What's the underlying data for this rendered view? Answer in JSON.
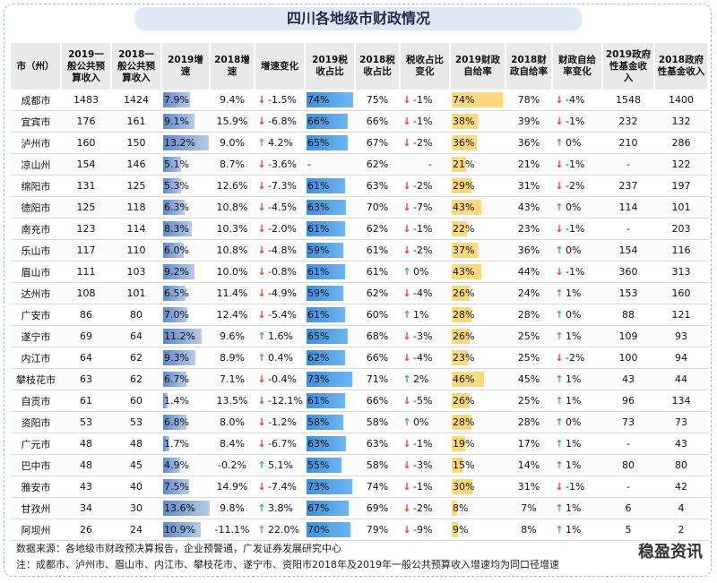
{
  "title": "四川各地级市财政情况",
  "headers": [
    "市（州）",
    "2019一般公共预算收入",
    "2018一般公共预算收入",
    "2019增速",
    "2018增速",
    "增速变化",
    "2019税收占比",
    "2018税收占比",
    "税收占比变化",
    "2019财政自给率",
    "2018财政自给率",
    "财政自给率变化",
    "2019政府性基金收入",
    "2018政府性基金收入"
  ],
  "rows": [
    {
      "city": "成都市",
      "b19": "1483",
      "b18": "1424",
      "g19": "7.9%",
      "g19v": 7.9,
      "g18": "9.4%",
      "gd": "-1.5%",
      "gdd": "down",
      "t19": "74%",
      "t19v": 74,
      "t18": "75%",
      "td": "-1%",
      "tdd": "down",
      "s19": "74%",
      "s19v": 74,
      "s18": "78%",
      "sd": "-4%",
      "sdd": "down",
      "f19": "1548",
      "f18": "1400"
    },
    {
      "city": "宜宾市",
      "b19": "176",
      "b18": "161",
      "g19": "9.1%",
      "g19v": 9.1,
      "g18": "15.9%",
      "gd": "-6.8%",
      "gdd": "down",
      "t19": "66%",
      "t19v": 66,
      "t18": "66%",
      "td": "-1%",
      "tdd": "down",
      "s19": "38%",
      "s19v": 38,
      "s18": "39%",
      "sd": "-1%",
      "sdd": "down",
      "f19": "232",
      "f18": "132"
    },
    {
      "city": "泸州市",
      "b19": "160",
      "b18": "150",
      "g19": "13.2%",
      "g19v": 13.2,
      "g18": "9.0%",
      "gd": "4.2%",
      "gdd": "up",
      "t19": "65%",
      "t19v": 65,
      "t18": "67%",
      "td": "-2%",
      "tdd": "down",
      "s19": "36%",
      "s19v": 36,
      "s18": "36%",
      "sd": "0%",
      "sdd": "up",
      "f19": "210",
      "f18": "286"
    },
    {
      "city": "凉山州",
      "b19": "154",
      "b18": "146",
      "g19": "5.1%",
      "g19v": 5.1,
      "g18": "8.7%",
      "gd": "-3.6%",
      "gdd": "down",
      "t19": "-",
      "t19v": 0,
      "t18": "62%",
      "td": "-",
      "tdd": "",
      "s19": "21%",
      "s19v": 21,
      "s18": "21%",
      "sd": "-1%",
      "sdd": "down",
      "f19": "-",
      "f18": "122"
    },
    {
      "city": "绵阳市",
      "b19": "131",
      "b18": "125",
      "g19": "5.3%",
      "g19v": 5.3,
      "g18": "12.6%",
      "gd": "-7.3%",
      "gdd": "down",
      "t19": "61%",
      "t19v": 61,
      "t18": "63%",
      "td": "-2%",
      "tdd": "down",
      "s19": "29%",
      "s19v": 29,
      "s18": "31%",
      "sd": "-2%",
      "sdd": "down",
      "f19": "237",
      "f18": "197"
    },
    {
      "city": "德阳市",
      "b19": "125",
      "b18": "118",
      "g19": "6.3%",
      "g19v": 6.3,
      "g18": "10.8%",
      "gd": "-4.5%",
      "gdd": "down",
      "t19": "63%",
      "t19v": 63,
      "t18": "70%",
      "td": "-7%",
      "tdd": "down",
      "s19": "43%",
      "s19v": 43,
      "s18": "43%",
      "sd": "0%",
      "sdd": "up",
      "f19": "114",
      "f18": "101"
    },
    {
      "city": "南充市",
      "b19": "123",
      "b18": "114",
      "g19": "8.3%",
      "g19v": 8.3,
      "g18": "10.3%",
      "gd": "-2.0%",
      "gdd": "down",
      "t19": "61%",
      "t19v": 61,
      "t18": "62%",
      "td": "-1%",
      "tdd": "down",
      "s19": "22%",
      "s19v": 22,
      "s18": "23%",
      "sd": "-1%",
      "sdd": "down",
      "f19": "-",
      "f18": "203"
    },
    {
      "city": "乐山市",
      "b19": "117",
      "b18": "110",
      "g19": "6.0%",
      "g19v": 6.0,
      "g18": "10.8%",
      "gd": "-4.8%",
      "gdd": "down",
      "t19": "59%",
      "t19v": 59,
      "t18": "61%",
      "td": "-2%",
      "tdd": "down",
      "s19": "37%",
      "s19v": 37,
      "s18": "36%",
      "sd": "0%",
      "sdd": "up",
      "f19": "154",
      "f18": "116"
    },
    {
      "city": "眉山市",
      "b19": "111",
      "b18": "103",
      "g19": "9.2%",
      "g19v": 9.2,
      "g18": "10.0%",
      "gd": "-0.8%",
      "gdd": "down",
      "t19": "61%",
      "t19v": 61,
      "t18": "61%",
      "td": "0%",
      "tdd": "up",
      "s19": "43%",
      "s19v": 43,
      "s18": "44%",
      "sd": "-1%",
      "sdd": "down",
      "f19": "360",
      "f18": "313"
    },
    {
      "city": "达州市",
      "b19": "108",
      "b18": "101",
      "g19": "6.5%",
      "g19v": 6.5,
      "g18": "11.4%",
      "gd": "-4.9%",
      "gdd": "down",
      "t19": "59%",
      "t19v": 59,
      "t18": "62%",
      "td": "-4%",
      "tdd": "down",
      "s19": "26%",
      "s19v": 26,
      "s18": "24%",
      "sd": "1%",
      "sdd": "up",
      "f19": "153",
      "f18": "160"
    },
    {
      "city": "广安市",
      "b19": "86",
      "b18": "80",
      "g19": "7.0%",
      "g19v": 7.0,
      "g18": "12.4%",
      "gd": "-5.4%",
      "gdd": "down",
      "t19": "61%",
      "t19v": 61,
      "t18": "60%",
      "td": "1%",
      "tdd": "up",
      "s19": "28%",
      "s19v": 28,
      "s18": "28%",
      "sd": "0%",
      "sdd": "up",
      "f19": "88",
      "f18": "121"
    },
    {
      "city": "遂宁市",
      "b19": "69",
      "b18": "64",
      "g19": "11.2%",
      "g19v": 11.2,
      "g18": "9.6%",
      "gd": "1.6%",
      "gdd": "up",
      "t19": "65%",
      "t19v": 65,
      "t18": "68%",
      "td": "-3%",
      "tdd": "down",
      "s19": "26%",
      "s19v": 26,
      "s18": "25%",
      "sd": "1%",
      "sdd": "up",
      "f19": "109",
      "f18": "93"
    },
    {
      "city": "内江市",
      "b19": "64",
      "b18": "62",
      "g19": "9.3%",
      "g19v": 9.3,
      "g18": "8.9%",
      "gd": "0.4%",
      "gdd": "up",
      "t19": "62%",
      "t19v": 62,
      "t18": "66%",
      "td": "-4%",
      "tdd": "down",
      "s19": "23%",
      "s19v": 23,
      "s18": "25%",
      "sd": "-2%",
      "sdd": "down",
      "f19": "100",
      "f18": "94"
    },
    {
      "city": "攀枝花市",
      "b19": "63",
      "b18": "62",
      "g19": "6.7%",
      "g19v": 6.7,
      "g18": "7.1%",
      "gd": "-0.4%",
      "gdd": "down",
      "t19": "73%",
      "t19v": 73,
      "t18": "71%",
      "td": "2%",
      "tdd": "up",
      "s19": "46%",
      "s19v": 46,
      "s18": "45%",
      "sd": "1%",
      "sdd": "up",
      "f19": "43",
      "f18": "44"
    },
    {
      "city": "自贡市",
      "b19": "61",
      "b18": "60",
      "g19": "1.4%",
      "g19v": 1.4,
      "g18": "13.5%",
      "gd": "-12.1%",
      "gdd": "down",
      "t19": "61%",
      "t19v": 61,
      "t18": "66%",
      "td": "-5%",
      "tdd": "down",
      "s19": "26%",
      "s19v": 26,
      "s18": "25%",
      "sd": "1%",
      "sdd": "up",
      "f19": "96",
      "f18": "134"
    },
    {
      "city": "资阳市",
      "b19": "53",
      "b18": "53",
      "g19": "6.8%",
      "g19v": 6.8,
      "g18": "8.0%",
      "gd": "-1.2%",
      "gdd": "down",
      "t19": "58%",
      "t19v": 58,
      "t18": "58%",
      "td": "0%",
      "tdd": "up",
      "s19": "28%",
      "s19v": 28,
      "s18": "28%",
      "sd": "0%",
      "sdd": "up",
      "f19": "73",
      "f18": "73"
    },
    {
      "city": "广元市",
      "b19": "48",
      "b18": "48",
      "g19": "1.7%",
      "g19v": 1.7,
      "g18": "8.4%",
      "gd": "-6.7%",
      "gdd": "down",
      "t19": "63%",
      "t19v": 63,
      "t18": "63%",
      "td": "-1%",
      "tdd": "down",
      "s19": "19%",
      "s19v": 19,
      "s18": "17%",
      "sd": "1%",
      "sdd": "up",
      "f19": "-",
      "f18": "43"
    },
    {
      "city": "巴中市",
      "b19": "48",
      "b18": "45",
      "g19": "4.9%",
      "g19v": 4.9,
      "g18": "-0.2%",
      "gd": "5.1%",
      "gdd": "up",
      "t19": "55%",
      "t19v": 55,
      "t18": "58%",
      "td": "-3%",
      "tdd": "down",
      "s19": "15%",
      "s19v": 15,
      "s18": "14%",
      "sd": "1%",
      "sdd": "up",
      "f19": "80",
      "f18": "80"
    },
    {
      "city": "雅安市",
      "b19": "43",
      "b18": "40",
      "g19": "7.5%",
      "g19v": 7.5,
      "g18": "14.9%",
      "gd": "-7.4%",
      "gdd": "down",
      "t19": "73%",
      "t19v": 73,
      "t18": "74%",
      "td": "-1%",
      "tdd": "down",
      "s19": "30%",
      "s19v": 30,
      "s18": "31%",
      "sd": "-1%",
      "sdd": "down",
      "f19": "-",
      "f18": "42"
    },
    {
      "city": "甘孜州",
      "b19": "34",
      "b18": "30",
      "g19": "13.6%",
      "g19v": 13.6,
      "g18": "9.8%",
      "gd": "3.8%",
      "gdd": "up",
      "t19": "67%",
      "t19v": 67,
      "t18": "69%",
      "td": "-2%",
      "tdd": "down",
      "s19": "8%",
      "s19v": 8,
      "s18": "7%",
      "sd": "1%",
      "sdd": "up",
      "f19": "6",
      "f18": "4"
    },
    {
      "city": "阿坝州",
      "b19": "26",
      "b18": "24",
      "g19": "10.9%",
      "g19v": 10.9,
      "g18": "-11.1%",
      "gd": "22.0%",
      "gdd": "up",
      "t19": "70%",
      "t19v": 70,
      "t18": "79%",
      "td": "-9%",
      "tdd": "down",
      "s19": "9%",
      "s19v": 9,
      "s18": "8%",
      "sd": "1%",
      "sdd": "up",
      "f19": "5",
      "f18": "2"
    }
  ],
  "footnote_source": "数据来源：各地级市财政预决算报告，企业预警通，广发证券发展研究中心",
  "footnote_note": "注：成都市、泸州市、眉山市、内江市、攀枝花市、遂宁市、资阳市2018年及2019年一般公共预算收入增速均为同口径增速",
  "watermark": "稳盈资讯",
  "colors": {
    "up": "#3cb64a",
    "down": "#e0413b",
    "growth_bar": "#5f88c8",
    "tax_bar": "#3a8fe0",
    "self_bar": "#fcd97a"
  }
}
